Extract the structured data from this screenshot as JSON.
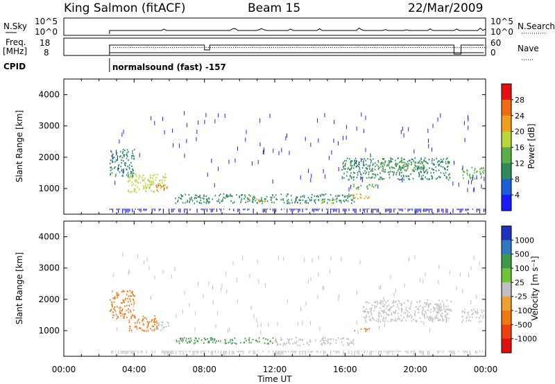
{
  "header": {
    "station": "King Salmon (fitACF)",
    "beam": "Beam 15",
    "date": "22/Mar/2009"
  },
  "top_panels": {
    "nsky_label": "N.Sky",
    "nsearch_label": "N.Search",
    "nsky_ticks": [
      "10^5",
      "10^0"
    ],
    "nsearch_ticks": [
      "10^5",
      "10^0"
    ],
    "freq_label_1": "Freq.",
    "freq_label_2": "[MHz]",
    "freq_ticks": [
      "18",
      "8"
    ],
    "nave_label": "Nave",
    "nave_ticks": [
      "60",
      "0"
    ],
    "cpid_label": "CPID",
    "cpid_text": "normalsound (fast) -157",
    "cpid_start_hour": 2.6
  },
  "colors": {
    "power_scale": [
      "#1a1aff",
      "#1a5fd8",
      "#2f8a5a",
      "#5aae4a",
      "#b8d63a",
      "#f0a020",
      "#f06a10",
      "#e61010"
    ],
    "velocity_scale": [
      "#2030c0",
      "#2e78c0",
      "#3e9a4a",
      "#6dc33a",
      "#c0c0c0",
      "#f0a030",
      "#f07a10",
      "#f04010",
      "#e01010"
    ]
  },
  "chart_data": [
    {
      "type": "heatmap",
      "title": "",
      "ylabel": "Slant Range [km]",
      "xlabel": "",
      "colorbar_label": "Power [dB]",
      "colorbar_ticks": [
        "28",
        "24",
        "20",
        "16",
        "12",
        "8",
        "4"
      ],
      "colorbar_range": [
        0,
        32
      ],
      "xlim": [
        0,
        24
      ],
      "ylim": [
        180,
        4500
      ],
      "yticks": [
        "4000",
        "3000",
        "2000",
        "1000"
      ],
      "regions": [
        {
          "t0": 2.6,
          "t1": 4.0,
          "r0": 1400,
          "r1": 2300,
          "value": 10
        },
        {
          "t0": 3.6,
          "t1": 5.8,
          "r0": 900,
          "r1": 1500,
          "value": 16
        },
        {
          "t0": 5.2,
          "t1": 5.9,
          "r0": 950,
          "r1": 1150,
          "value": 27
        },
        {
          "t0": 6.3,
          "t1": 16.5,
          "r0": 550,
          "r1": 850,
          "value": 10
        },
        {
          "t0": 10.5,
          "t1": 11.5,
          "r0": 600,
          "r1": 700,
          "value": 20
        },
        {
          "t0": 14.5,
          "t1": 15.5,
          "r0": 550,
          "r1": 650,
          "value": 18
        },
        {
          "t0": 16.2,
          "t1": 17.8,
          "r0": 1000,
          "r1": 1150,
          "value": 12
        },
        {
          "t0": 16.3,
          "t1": 17.5,
          "r0": 700,
          "r1": 850,
          "value": 20
        },
        {
          "t0": 15.8,
          "t1": 22.0,
          "r0": 1300,
          "r1": 2000,
          "value": 8
        },
        {
          "t0": 17.8,
          "t1": 20.5,
          "r0": 1600,
          "r1": 1900,
          "value": 14
        },
        {
          "t0": 22.6,
          "t1": 23.9,
          "r0": 1300,
          "r1": 1700,
          "value": 12
        }
      ]
    },
    {
      "type": "heatmap",
      "title": "",
      "ylabel": "Slant Range [km]",
      "xlabel": "Time UT",
      "colorbar_label": "Velocity [m s⁻¹]",
      "colorbar_ticks": [
        "1000",
        "500",
        "100",
        "25",
        "-25",
        "-100",
        "-500",
        "-1000"
      ],
      "xlim": [
        0,
        24
      ],
      "ylim": [
        180,
        4500
      ],
      "yticks": [
        "4000",
        "3000",
        "2000",
        "1000"
      ],
      "xticks": [
        "00:00",
        "04:00",
        "08:00",
        "12:00",
        "16:00",
        "20:00",
        "00:00"
      ],
      "regions": [
        {
          "t0": 2.6,
          "t1": 4.0,
          "r0": 1400,
          "r1": 2300,
          "value": -150
        },
        {
          "t0": 3.6,
          "t1": 5.3,
          "r0": 1000,
          "r1": 1500,
          "value": -200
        },
        {
          "t0": 5.2,
          "t1": 6.0,
          "r0": 1000,
          "r1": 1300,
          "value": 0
        },
        {
          "t0": 6.3,
          "t1": 12.0,
          "r0": 600,
          "r1": 800,
          "value": 60
        },
        {
          "t0": 12.0,
          "t1": 16.5,
          "r0": 550,
          "r1": 800,
          "value": 0
        },
        {
          "t0": 16.5,
          "t1": 17.5,
          "r0": 1000,
          "r1": 1100,
          "value": -150
        },
        {
          "t0": 17.0,
          "t1": 22.0,
          "r0": 1300,
          "r1": 2000,
          "value": 0
        },
        {
          "t0": 22.6,
          "t1": 23.9,
          "r0": 1300,
          "r1": 1700,
          "value": 0
        }
      ]
    }
  ]
}
